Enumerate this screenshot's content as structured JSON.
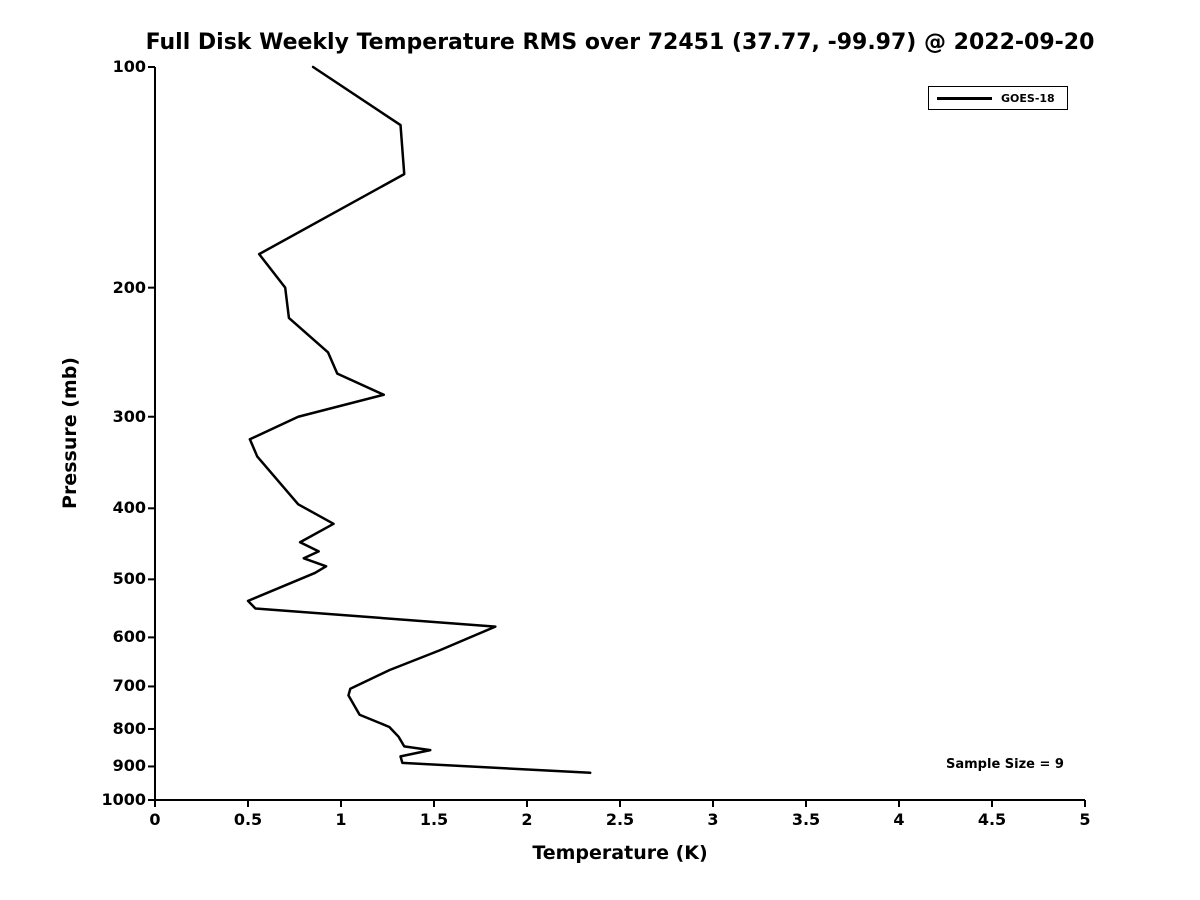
{
  "chart_data": {
    "type": "line",
    "title": "Full Disk Weekly Temperature RMS over 72451 (37.77, -99.97) @ 2022-09-20",
    "xlabel": "Temperature (K)",
    "ylabel": "Pressure (mb)",
    "xlim": [
      0,
      5
    ],
    "ylim": [
      100,
      1000
    ],
    "y_scale": "log",
    "y_inverted": true,
    "grid": false,
    "legend_position": "top-right",
    "annotation": "Sample Size = 9",
    "x_ticks": [
      0,
      0.5,
      1,
      1.5,
      2,
      2.5,
      3,
      3.5,
      4,
      4.5,
      5
    ],
    "x_tick_labels": [
      "0",
      "0.5",
      "1",
      "1.5",
      "2",
      "2.5",
      "3",
      "3.5",
      "4",
      "4.5",
      "5"
    ],
    "y_ticks": [
      100,
      200,
      300,
      400,
      500,
      600,
      700,
      800,
      900,
      1000
    ],
    "y_tick_labels": [
      "100",
      "200",
      "300",
      "400",
      "500",
      "600",
      "700",
      "800",
      "900",
      "1000"
    ],
    "point_format": [
      "pressure_mb",
      "rms_K"
    ],
    "series": [
      {
        "name": "GOES-18",
        "color": "#000000",
        "points": [
          [
            100,
            0.85
          ],
          [
            120,
            1.32
          ],
          [
            140,
            1.34
          ],
          [
            180,
            0.56
          ],
          [
            200,
            0.7
          ],
          [
            220,
            0.72
          ],
          [
            245,
            0.93
          ],
          [
            262,
            0.98
          ],
          [
            280,
            1.23
          ],
          [
            300,
            0.77
          ],
          [
            322,
            0.51
          ],
          [
            340,
            0.55
          ],
          [
            395,
            0.77
          ],
          [
            420,
            0.96
          ],
          [
            445,
            0.78
          ],
          [
            458,
            0.88
          ],
          [
            468,
            0.8
          ],
          [
            480,
            0.92
          ],
          [
            490,
            0.86
          ],
          [
            535,
            0.5
          ],
          [
            548,
            0.54
          ],
          [
            580,
            1.83
          ],
          [
            625,
            1.53
          ],
          [
            665,
            1.26
          ],
          [
            705,
            1.05
          ],
          [
            720,
            1.04
          ],
          [
            765,
            1.1
          ],
          [
            795,
            1.26
          ],
          [
            820,
            1.31
          ],
          [
            845,
            1.34
          ],
          [
            855,
            1.48
          ],
          [
            872,
            1.32
          ],
          [
            890,
            1.33
          ],
          [
            918,
            2.34
          ]
        ]
      }
    ]
  }
}
